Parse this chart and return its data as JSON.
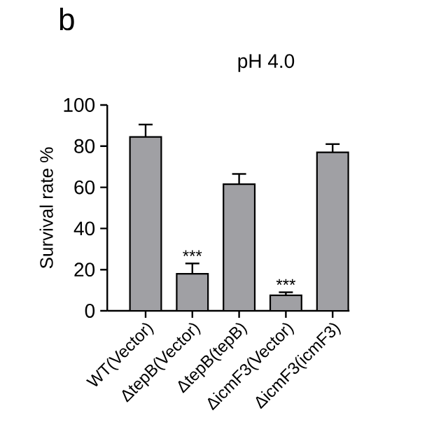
{
  "chart_data": {
    "type": "bar",
    "title": "pH 4.0",
    "ylabel": "Survival rate %",
    "categories": [
      "WT(Vector)",
      "ΔtepB(Vector)",
      "ΔtepB(tepB)",
      "ΔicmF3(Vector)",
      "ΔicmF3(icmF3)"
    ],
    "values": [
      84.5,
      18,
      61.5,
      7.5,
      77
    ],
    "errors": [
      6,
      5,
      5,
      1.5,
      4
    ],
    "color": "#a0a0a4",
    "ylim": [
      0,
      100
    ],
    "yticks": [
      0,
      20,
      40,
      60,
      80,
      100
    ],
    "annotations": [
      "b",
      {
        "text": "***",
        "x": "ΔtepB(Vector)",
        "y": 23
      },
      {
        "text": "***",
        "x": "ΔicmF3(Vector)",
        "y": 9
      }
    ]
  }
}
